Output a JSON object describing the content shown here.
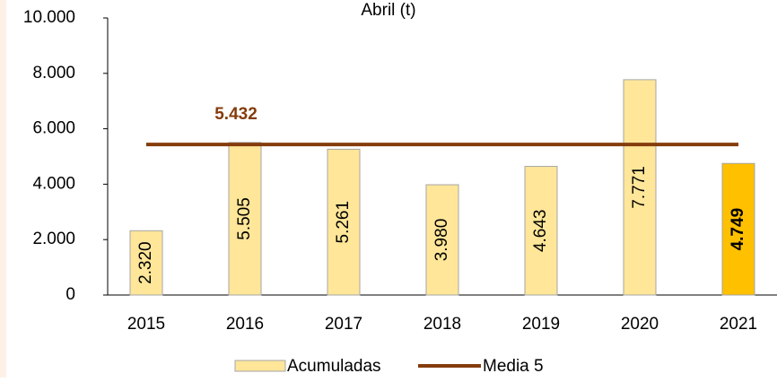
{
  "chart_data": {
    "type": "bar",
    "title": "Abril (t)",
    "categories": [
      "2015",
      "2016",
      "2017",
      "2018",
      "2019",
      "2020",
      "2021"
    ],
    "series": [
      {
        "name": "Acumuladas",
        "type": "bar",
        "color": "#ffe699",
        "colors": [
          "#ffe699",
          "#ffe699",
          "#ffe699",
          "#ffe699",
          "#ffe699",
          "#ffe699",
          "#ffc000"
        ],
        "values": [
          2320,
          5505,
          5261,
          3980,
          4643,
          7771,
          4749
        ],
        "value_labels": [
          "2.320",
          "5.505",
          "5.261",
          "3.980",
          "4.643",
          "7.771",
          "4.749"
        ]
      },
      {
        "name": "Media 5",
        "type": "line",
        "color": "#843c0c",
        "values": [
          5432,
          5432,
          5432,
          5432,
          5432,
          5432,
          5432
        ],
        "value_labels": [
          null,
          "5.432",
          null,
          null,
          null,
          null,
          null
        ]
      }
    ],
    "ylim": [
      0,
      10000
    ],
    "yticks": [
      0,
      {
        "value": 2000,
        "label": "2.000"
      },
      {
        "value": 4000,
        "label": "4.000"
      },
      {
        "value": 6000,
        "label": "6.000"
      },
      {
        "value": 8000,
        "label": "8.000"
      },
      {
        "value": 10000,
        "label": "10.000"
      }
    ],
    "grid": false,
    "legend": "bottom"
  }
}
